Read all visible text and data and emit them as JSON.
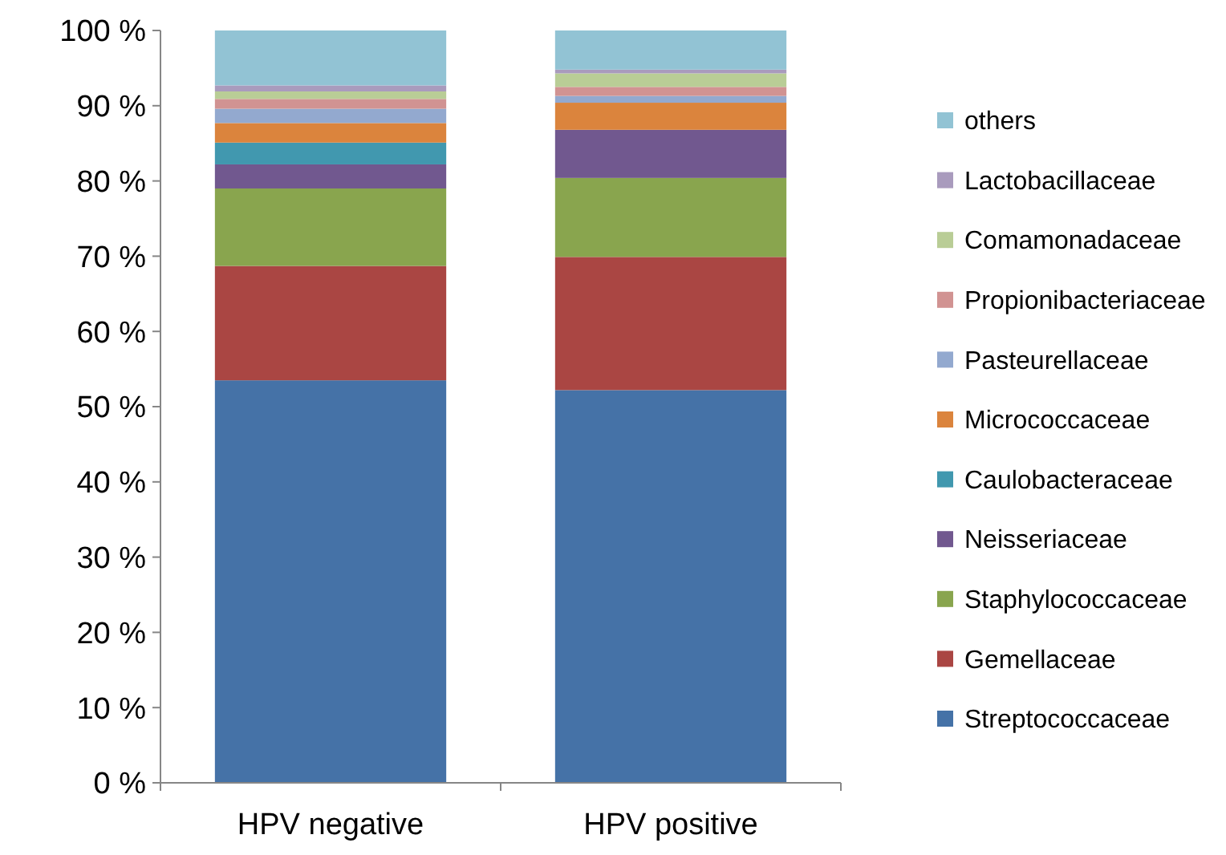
{
  "chart_data": {
    "type": "bar",
    "stacked": true,
    "categories": [
      "HPV negative",
      "HPV positive"
    ],
    "series": [
      {
        "name": "Streptococcaceae",
        "color": "#4572a7",
        "values": [
          53.5,
          52.2
        ]
      },
      {
        "name": "Gemellaceae",
        "color": "#aa4643",
        "values": [
          15.2,
          17.7
        ]
      },
      {
        "name": "Staphylococcaceae",
        "color": "#89a54e",
        "values": [
          10.3,
          10.5
        ]
      },
      {
        "name": "Neisseriaceae",
        "color": "#71588f",
        "values": [
          3.2,
          6.4
        ]
      },
      {
        "name": "Caulobacteraceae",
        "color": "#4198af",
        "values": [
          2.9,
          0
        ]
      },
      {
        "name": "Micrococcaceae",
        "color": "#db843d",
        "values": [
          2.6,
          3.6
        ]
      },
      {
        "name": "Pasteurellaceae",
        "color": "#93a9cf",
        "values": [
          1.9,
          0.9
        ]
      },
      {
        "name": "Propionibacteriaceae",
        "color": "#d19392",
        "values": [
          1.3,
          1.2
        ]
      },
      {
        "name": "Comamonadaceae",
        "color": "#b9cd96",
        "values": [
          1.0,
          1.8
        ]
      },
      {
        "name": "Lactobacillaceae",
        "color": "#a99bbd",
        "values": [
          0.8,
          0.5
        ]
      },
      {
        "name": "others",
        "color": "#92c3d4",
        "values": [
          7.3,
          5.2
        ]
      }
    ],
    "ylim": [
      0,
      100
    ],
    "yticks": [
      {
        "value": 0,
        "label": "0 %"
      },
      {
        "value": 10,
        "label": "10 %"
      },
      {
        "value": 20,
        "label": "20 %"
      },
      {
        "value": 30,
        "label": "30 %"
      },
      {
        "value": 40,
        "label": "40 %"
      },
      {
        "value": 50,
        "label": "50 %"
      },
      {
        "value": 60,
        "label": "60 %"
      },
      {
        "value": 70,
        "label": "70 %"
      },
      {
        "value": 80,
        "label": "80 %"
      },
      {
        "value": 90,
        "label": "90 %"
      },
      {
        "value": 100,
        "label": "100 %"
      }
    ],
    "grid": false,
    "legend": "right"
  }
}
